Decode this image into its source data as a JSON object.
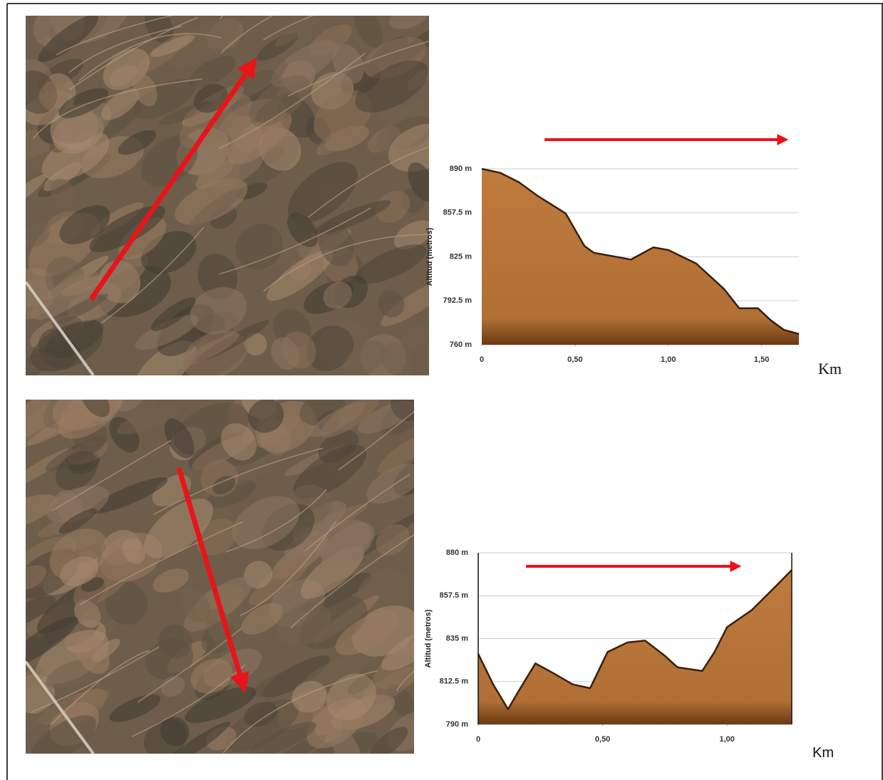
{
  "chart_data": [
    {
      "type": "area",
      "y_label": "Altitud (metros)",
      "x_label": "Km",
      "x": [
        0,
        0.1,
        0.2,
        0.3,
        0.45,
        0.55,
        0.6,
        0.8,
        0.92,
        1.0,
        1.15,
        1.3,
        1.38,
        1.48,
        1.55,
        1.62,
        1.7
      ],
      "values": [
        890,
        887,
        880,
        870,
        857,
        833,
        828,
        823,
        832,
        830,
        820,
        801,
        787,
        787,
        778,
        771,
        768
      ],
      "color": "#b87639",
      "xlim": [
        0,
        1.7
      ],
      "xticks": [
        0,
        {
          "value": 0.5,
          "label": "0,50"
        },
        {
          "value": 1.0,
          "label": "1,00"
        },
        {
          "value": 1.5,
          "label": "1,50"
        }
      ],
      "ylim": [
        760,
        890
      ],
      "yticks": [
        {
          "value": 760,
          "label": "760 m"
        },
        {
          "value": 792.5,
          "label": "792.5 m"
        },
        {
          "value": 825,
          "label": "825 m"
        },
        {
          "value": 857.5,
          "label": "857.5 m"
        },
        {
          "value": 890,
          "label": "890 m"
        }
      ],
      "grid": true
    },
    {
      "type": "area",
      "y_label": "Altitud (metros)",
      "x_label": "Km",
      "x": [
        0,
        0.06,
        0.12,
        0.16,
        0.23,
        0.3,
        0.38,
        0.45,
        0.52,
        0.6,
        0.67,
        0.75,
        0.8,
        0.9,
        0.95,
        1.0,
        1.1,
        1.2,
        1.26
      ],
      "values": [
        827,
        811,
        798,
        807,
        822,
        817,
        811,
        809,
        828,
        833,
        834,
        826,
        820,
        818,
        828,
        841,
        850,
        863,
        871
      ],
      "color": "#b87639",
      "xlim": [
        0,
        1.26
      ],
      "xticks": [
        0,
        {
          "value": 0.5,
          "label": "0,50"
        },
        {
          "value": 1.0,
          "label": "1,00"
        }
      ],
      "ylim": [
        790,
        880
      ],
      "yticks": [
        {
          "value": 790,
          "label": "790 m"
        },
        {
          "value": 812.5,
          "label": "812.5 m"
        },
        {
          "value": 835,
          "label": "835 m"
        },
        {
          "value": 857.5,
          "label": "857.5 m"
        },
        {
          "value": 880,
          "label": "880 m"
        }
      ],
      "grid": true
    }
  ]
}
